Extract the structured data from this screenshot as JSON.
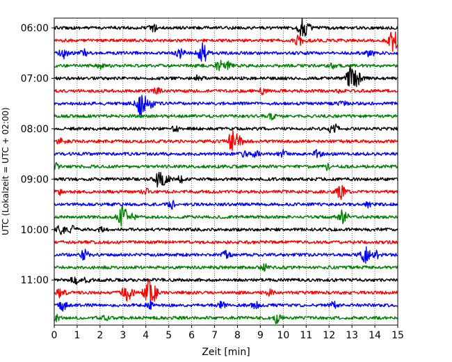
{
  "chart_data": {
    "type": "line",
    "title": "",
    "xlabel": "Zeit  [min]",
    "ylabel": "UTC (Lokalzeit = UTC + 02:00)",
    "xlim": [
      0,
      15
    ],
    "x_ticks": [
      "0",
      "1",
      "2",
      "3",
      "4",
      "5",
      "6",
      "7",
      "8",
      "9",
      "10",
      "11",
      "12",
      "13",
      "14",
      "15"
    ],
    "y_tick_labels": [
      "06:00",
      "07:00",
      "08:00",
      "09:00",
      "10:00",
      "11:00"
    ],
    "grid": "vertical dotted at each minute",
    "trace_interval_minutes": 15,
    "color_cycle": [
      "#000000",
      "#ff0000",
      "#0000ff",
      "#008000"
    ],
    "series": [
      {
        "start": "06:00",
        "color": "#000000",
        "events": [
          {
            "t": 4.3,
            "amp": 0.6
          },
          {
            "t": 10.9,
            "amp": 1.7
          }
        ]
      },
      {
        "start": "06:15",
        "color": "#ff0000",
        "events": [
          {
            "t": 10.7,
            "amp": 0.8
          },
          {
            "t": 14.8,
            "amp": 1.6
          }
        ]
      },
      {
        "start": "06:30",
        "color": "#0000ff",
        "events": [
          {
            "t": 0.4,
            "amp": 0.8
          },
          {
            "t": 1.3,
            "amp": 0.5
          },
          {
            "t": 5.5,
            "amp": 0.7
          },
          {
            "t": 6.5,
            "amp": 1.4
          },
          {
            "t": 13.8,
            "amp": 0.6
          }
        ]
      },
      {
        "start": "06:45",
        "color": "#008000",
        "events": [
          {
            "t": 2.0,
            "amp": 0.4
          },
          {
            "t": 7.2,
            "amp": 0.8
          },
          {
            "t": 7.6,
            "amp": 0.6
          },
          {
            "t": 12.2,
            "amp": 0.4
          }
        ]
      },
      {
        "start": "07:00",
        "color": "#000000",
        "events": [
          {
            "t": 6.3,
            "amp": 0.5
          },
          {
            "t": 13.0,
            "amp": 1.9
          },
          {
            "t": 13.3,
            "amp": 0.6
          }
        ]
      },
      {
        "start": "07:15",
        "color": "#ff0000",
        "events": [
          {
            "t": 4.5,
            "amp": 0.5
          },
          {
            "t": 9.1,
            "amp": 0.4
          },
          {
            "t": 12.4,
            "amp": 0.4
          }
        ]
      },
      {
        "start": "07:30",
        "color": "#0000ff",
        "events": [
          {
            "t": 3.8,
            "amp": 1.8
          },
          {
            "t": 4.2,
            "amp": 0.6
          },
          {
            "t": 12.6,
            "amp": 0.4
          }
        ]
      },
      {
        "start": "07:45",
        "color": "#008000",
        "events": [
          {
            "t": 9.5,
            "amp": 0.4
          }
        ]
      },
      {
        "start": "08:00",
        "color": "#000000",
        "events": [
          {
            "t": 5.3,
            "amp": 0.4
          },
          {
            "t": 12.2,
            "amp": 0.9
          }
        ]
      },
      {
        "start": "08:15",
        "color": "#ff0000",
        "events": [
          {
            "t": 0.3,
            "amp": 0.5
          },
          {
            "t": 7.8,
            "amp": 1.5
          },
          {
            "t": 8.1,
            "amp": 0.6
          }
        ]
      },
      {
        "start": "08:30",
        "color": "#0000ff",
        "events": [
          {
            "t": 8.3,
            "amp": 0.4
          },
          {
            "t": 8.8,
            "amp": 0.5
          },
          {
            "t": 10.0,
            "amp": 0.5
          },
          {
            "t": 11.5,
            "amp": 0.6
          }
        ]
      },
      {
        "start": "08:45",
        "color": "#008000",
        "events": [
          {
            "t": 0.1,
            "amp": 0.4
          },
          {
            "t": 11.9,
            "amp": 0.4
          }
        ]
      },
      {
        "start": "09:00",
        "color": "#000000",
        "events": [
          {
            "t": 4.6,
            "amp": 1.3
          },
          {
            "t": 4.9,
            "amp": 0.6
          },
          {
            "t": 5.5,
            "amp": 0.5
          }
        ]
      },
      {
        "start": "09:15",
        "color": "#ff0000",
        "events": [
          {
            "t": 0.3,
            "amp": 0.4
          },
          {
            "t": 4.0,
            "amp": 0.4
          },
          {
            "t": 12.5,
            "amp": 1.0
          }
        ]
      },
      {
        "start": "09:30",
        "color": "#0000ff",
        "events": [
          {
            "t": 5.2,
            "amp": 0.7
          },
          {
            "t": 13.7,
            "amp": 0.4
          }
        ]
      },
      {
        "start": "09:45",
        "color": "#008000",
        "events": [
          {
            "t": 3.0,
            "amp": 1.5
          },
          {
            "t": 3.4,
            "amp": 0.6
          },
          {
            "t": 12.6,
            "amp": 1.3
          }
        ]
      },
      {
        "start": "10:00",
        "color": "#000000",
        "events": [
          {
            "t": 0.3,
            "amp": 0.7
          },
          {
            "t": 0.8,
            "amp": 0.5
          },
          {
            "t": 2.0,
            "amp": 0.4
          }
        ]
      },
      {
        "start": "10:15",
        "color": "#ff0000",
        "events": []
      },
      {
        "start": "10:30",
        "color": "#0000ff",
        "events": [
          {
            "t": 1.3,
            "amp": 1.0
          },
          {
            "t": 7.5,
            "amp": 0.6
          },
          {
            "t": 13.6,
            "amp": 1.2
          },
          {
            "t": 14.1,
            "amp": 0.5
          }
        ]
      },
      {
        "start": "10:45",
        "color": "#008000",
        "events": [
          {
            "t": 9.2,
            "amp": 0.5
          }
        ]
      },
      {
        "start": "11:00",
        "color": "#000000",
        "events": [
          {
            "t": 0.9,
            "amp": 0.6
          },
          {
            "t": 1.4,
            "amp": 0.4
          }
        ]
      },
      {
        "start": "11:15",
        "color": "#ff0000",
        "events": [
          {
            "t": 0.3,
            "amp": 0.8
          },
          {
            "t": 3.2,
            "amp": 1.5
          },
          {
            "t": 4.2,
            "amp": 2.2
          },
          {
            "t": 9.4,
            "amp": 0.4
          }
        ]
      },
      {
        "start": "11:30",
        "color": "#0000ff",
        "events": [
          {
            "t": 0.4,
            "amp": 0.8
          },
          {
            "t": 4.2,
            "amp": 0.6
          },
          {
            "t": 7.3,
            "amp": 0.5
          },
          {
            "t": 8.8,
            "amp": 0.5
          },
          {
            "t": 12.2,
            "amp": 0.5
          }
        ]
      },
      {
        "start": "11:45",
        "color": "#008000",
        "events": [
          {
            "t": 0.1,
            "amp": 0.4
          },
          {
            "t": 2.2,
            "amp": 0.4
          },
          {
            "t": 9.7,
            "amp": 0.8
          }
        ]
      }
    ]
  }
}
